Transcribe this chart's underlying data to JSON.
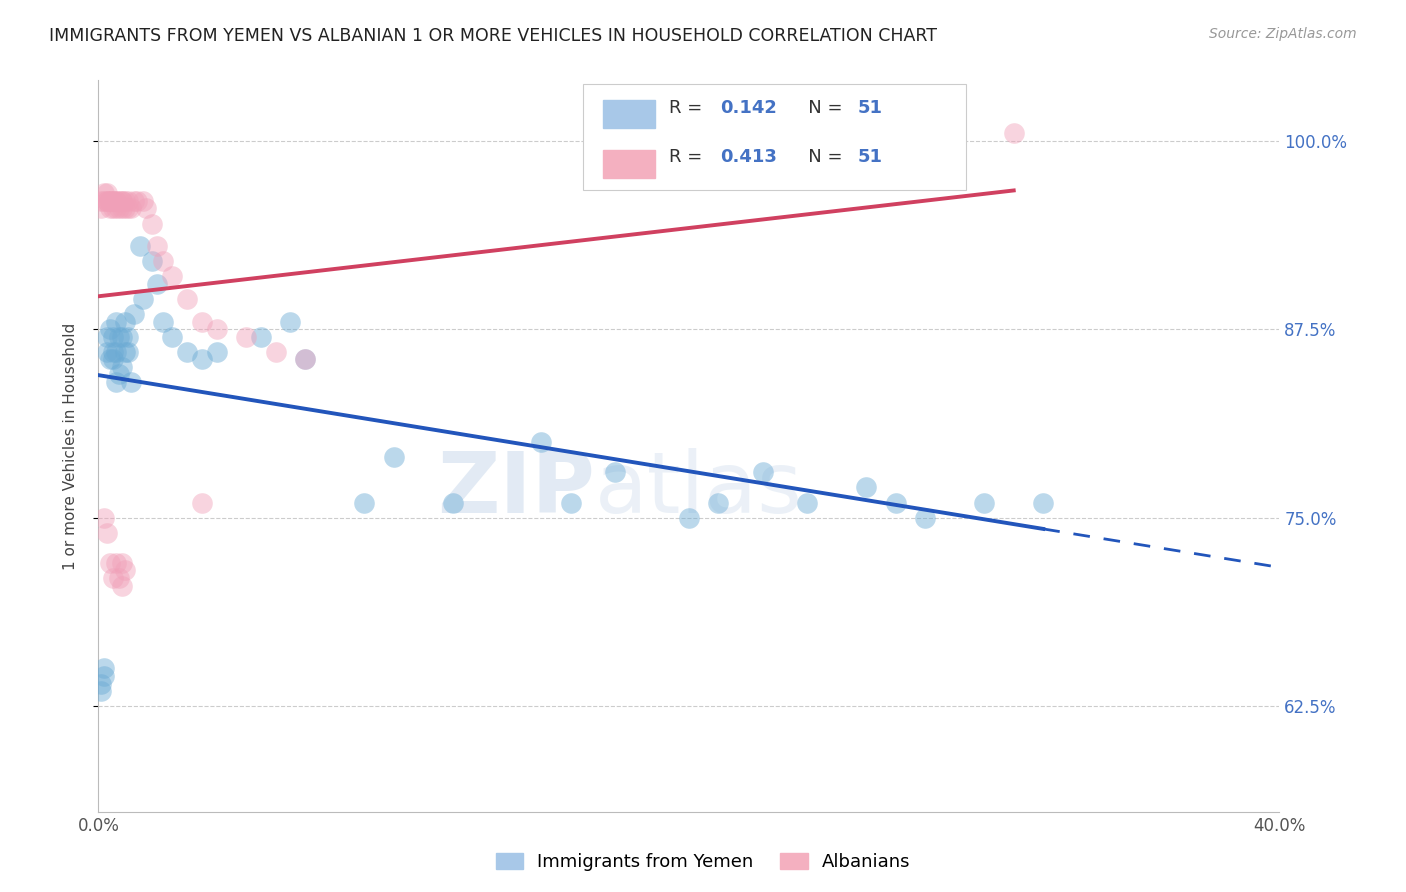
{
  "title": "IMMIGRANTS FROM YEMEN VS ALBANIAN 1 OR MORE VEHICLES IN HOUSEHOLD CORRELATION CHART",
  "source": "Source: ZipAtlas.com",
  "ylabel": "1 or more Vehicles in Household",
  "xlim": [
    0.0,
    0.4
  ],
  "ylim": [
    0.555,
    1.04
  ],
  "yticks": [
    0.625,
    0.75,
    0.875,
    1.0
  ],
  "ytick_labels": [
    "62.5%",
    "75.0%",
    "87.5%",
    "100.0%"
  ],
  "xticks": [
    0.0,
    0.05,
    0.1,
    0.15,
    0.2,
    0.25,
    0.3,
    0.35,
    0.4
  ],
  "xtick_labels": [
    "0.0%",
    "",
    "",
    "",
    "",
    "",
    "",
    "",
    "40.0%"
  ],
  "R_blue": 0.142,
  "R_pink": 0.413,
  "N_blue": 51,
  "N_pink": 51,
  "blue_scatter_color": "#6aaad4",
  "pink_scatter_color": "#f0a0b8",
  "blue_line_color": "#2255bb",
  "pink_line_color": "#d04060",
  "watermark": "ZIPatlas",
  "legend_blue_label": "Immigrants from Yemen",
  "legend_pink_label": "Albanians",
  "yemen_x": [
    0.001,
    0.001,
    0.002,
    0.002,
    0.003,
    0.003,
    0.004,
    0.004,
    0.005,
    0.005,
    0.005,
    0.006,
    0.006,
    0.006,
    0.007,
    0.007,
    0.008,
    0.008,
    0.009,
    0.009,
    0.01,
    0.01,
    0.011,
    0.012,
    0.014,
    0.015,
    0.018,
    0.02,
    0.022,
    0.025,
    0.03,
    0.035,
    0.04,
    0.055,
    0.065,
    0.07,
    0.09,
    0.1,
    0.12,
    0.15,
    0.16,
    0.175,
    0.2,
    0.21,
    0.225,
    0.24,
    0.26,
    0.27,
    0.28,
    0.3,
    0.32
  ],
  "yemen_y": [
    0.64,
    0.635,
    0.65,
    0.645,
    0.87,
    0.86,
    0.855,
    0.875,
    0.86,
    0.855,
    0.87,
    0.84,
    0.86,
    0.88,
    0.845,
    0.87,
    0.85,
    0.87,
    0.86,
    0.88,
    0.87,
    0.86,
    0.84,
    0.885,
    0.93,
    0.895,
    0.92,
    0.905,
    0.88,
    0.87,
    0.86,
    0.855,
    0.86,
    0.87,
    0.88,
    0.855,
    0.76,
    0.79,
    0.76,
    0.8,
    0.76,
    0.78,
    0.75,
    0.76,
    0.78,
    0.76,
    0.77,
    0.76,
    0.75,
    0.76,
    0.76
  ],
  "albanian_x": [
    0.001,
    0.001,
    0.002,
    0.002,
    0.003,
    0.003,
    0.003,
    0.004,
    0.004,
    0.004,
    0.005,
    0.005,
    0.005,
    0.006,
    0.006,
    0.006,
    0.007,
    0.007,
    0.008,
    0.008,
    0.008,
    0.009,
    0.009,
    0.01,
    0.01,
    0.011,
    0.012,
    0.013,
    0.015,
    0.016,
    0.018,
    0.02,
    0.022,
    0.025,
    0.03,
    0.035,
    0.04,
    0.05,
    0.06,
    0.07,
    0.002,
    0.003,
    0.004,
    0.005,
    0.006,
    0.007,
    0.008,
    0.008,
    0.009,
    0.035,
    0.31
  ],
  "albanian_y": [
    0.955,
    0.96,
    0.96,
    0.965,
    0.96,
    0.96,
    0.965,
    0.96,
    0.955,
    0.96,
    0.955,
    0.96,
    0.96,
    0.955,
    0.96,
    0.96,
    0.96,
    0.955,
    0.955,
    0.96,
    0.96,
    0.96,
    0.955,
    0.955,
    0.96,
    0.955,
    0.96,
    0.96,
    0.96,
    0.955,
    0.945,
    0.93,
    0.92,
    0.91,
    0.895,
    0.88,
    0.875,
    0.87,
    0.86,
    0.855,
    0.75,
    0.74,
    0.72,
    0.71,
    0.72,
    0.71,
    0.705,
    0.72,
    0.715,
    0.76,
    1.005
  ]
}
